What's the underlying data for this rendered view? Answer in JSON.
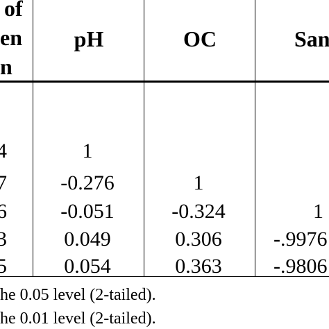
{
  "header": {
    "first_col_lines": [
      "of",
      "en",
      "n"
    ],
    "columns": [
      "pH",
      "OC",
      "San"
    ]
  },
  "rows": [
    {
      "first": "4",
      "ph": "1",
      "oc": "",
      "san": ""
    },
    {
      "first": "7",
      "ph": "-0.276",
      "oc": "1",
      "san": ""
    },
    {
      "first": "6",
      "ph": "-0.051",
      "oc": "-0.324",
      "san": "1"
    },
    {
      "first": "3",
      "ph": "0.049",
      "oc": "0.306",
      "san": "-.9976"
    },
    {
      "first": "5",
      "ph": "0.054",
      "oc": "0.363",
      "san": "-.9806"
    }
  ],
  "footnotes": [
    "he 0.05 level (2-tailed).",
    "he 0.01 level (2-tailed)."
  ]
}
